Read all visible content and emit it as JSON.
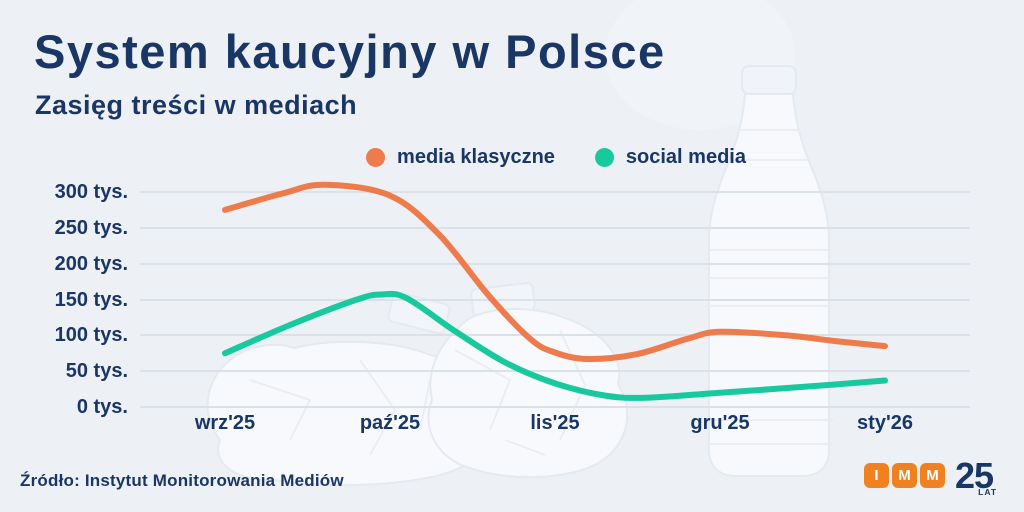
{
  "header": {
    "title": "System kaucyjny w Polsce",
    "subtitle": "Zasięg treści w mediach"
  },
  "chart_data": {
    "type": "line",
    "title": "System kaucyjny w Polsce",
    "subtitle": "Zasięg treści w mediach",
    "unit": "tys.",
    "grid": "horizontal-only",
    "legend_position": "top-center",
    "x_tick_labels": [
      "wrz'25",
      "paź'25",
      "lis'25",
      "gru'25",
      "sty'26"
    ],
    "y_tick_labels": [
      "300 tys.",
      "250 tys.",
      "200 tys.",
      "150 tys.",
      "100 tys.",
      "50 tys.",
      "0 tys."
    ],
    "y_ticks": [
      300,
      250,
      200,
      150,
      100,
      50,
      0
    ],
    "ylim": [
      0,
      320
    ],
    "series": [
      {
        "name": "media klasyczne",
        "color": "#ee7b4b",
        "x_month_index": [
          0,
          0.35,
          0.6,
          1,
          1.3,
          1.6,
          1.85,
          2,
          2.2,
          2.5,
          2.8,
          3,
          3.4,
          3.7,
          4
        ],
        "values_tys": [
          275,
          298,
          310,
          295,
          240,
          155,
          95,
          76,
          67,
          74,
          95,
          105,
          100,
          92,
          85
        ],
        "values_at_ticks_tys": [
          275,
          295,
          76,
          105,
          85
        ]
      },
      {
        "name": "social media",
        "color": "#19c99e",
        "x_month_index": [
          0,
          0.4,
          0.8,
          0.95,
          1.1,
          1.4,
          1.7,
          2,
          2.3,
          2.55,
          3,
          3.5,
          4
        ],
        "values_tys": [
          75,
          115,
          150,
          157,
          152,
          105,
          62,
          33,
          16,
          13,
          20,
          28,
          37
        ],
        "values_at_ticks_tys": [
          75,
          156,
          33,
          20,
          37
        ]
      }
    ]
  },
  "footer": {
    "source": "Źródło: Instytut Monitorowania Mediów"
  },
  "logo": {
    "letters": [
      "I",
      "M",
      "M"
    ],
    "number": "25",
    "caption": "LAT"
  },
  "colors": {
    "background": "#edf1f5",
    "text_navy": "#1a3665",
    "gridline": "#dbe1e8",
    "media_klasyczne": "#ee7b4b",
    "social_media": "#19c99e",
    "logo_orange": "#f08121",
    "logo_letter": "#ffffff"
  }
}
